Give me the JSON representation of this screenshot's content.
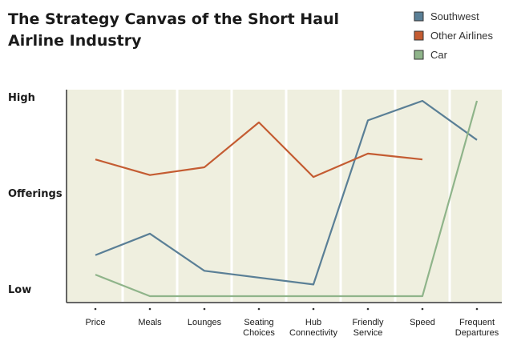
{
  "colors": {
    "plot_background": "#efefdf",
    "gridline": "#ffffff",
    "axis": "#333333"
  },
  "chart_data": {
    "type": "line",
    "title": "The Strategy Canvas of the Short Haul Airline Industry",
    "title_lines": [
      "The Strategy Canvas of the Short Haul",
      "Airline Industry"
    ],
    "categories": [
      "Price",
      "Meals",
      "Lounges",
      "Seating Choices",
      "Hub Connectivity",
      "Friendly Service",
      "Speed",
      "Frequent Departures"
    ],
    "category_lines": [
      [
        "Price"
      ],
      [
        "Meals"
      ],
      [
        "Lounges"
      ],
      [
        "Seating",
        "Choices"
      ],
      [
        "Hub",
        "Connectivity"
      ],
      [
        "Friendly",
        "Service"
      ],
      [
        "Speed"
      ],
      [
        "Frequent",
        "Departures"
      ]
    ],
    "ylabels": [
      "High",
      "Offerings",
      "Low"
    ],
    "ylim": [
      0,
      10
    ],
    "grid": true,
    "legend_position": "top-right",
    "series": [
      {
        "name": "Southwest",
        "color": "#5a7f96",
        "values": [
          2.1,
          3.2,
          1.3,
          null,
          0.6,
          9.0,
          10.0,
          8.0
        ],
        "x_positions": [
          0,
          1,
          2,
          null,
          4,
          5,
          6,
          7
        ]
      },
      {
        "name": "Other Airlines",
        "color": "#c45c32",
        "values": [
          7.0,
          6.2,
          6.6,
          8.9,
          6.1,
          7.3,
          7.0,
          null
        ]
      },
      {
        "name": "Car",
        "color": "#8fb48a",
        "values": [
          1.1,
          0.0,
          0.0,
          0.0,
          0.0,
          0.0,
          0.0,
          10.0
        ]
      }
    ]
  }
}
